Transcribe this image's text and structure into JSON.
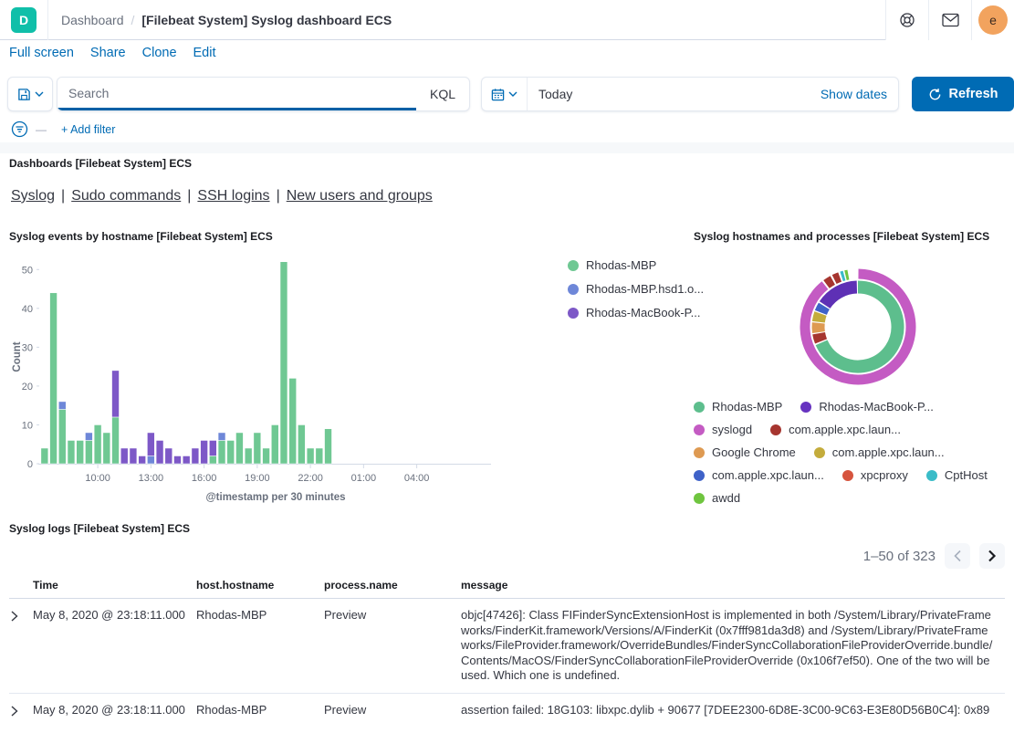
{
  "header": {
    "logo_letter": "D",
    "breadcrumb_root": "Dashboard",
    "breadcrumb_sep": "/",
    "title": "[Filebeat System] Syslog dashboard ECS",
    "avatar_letter": "e"
  },
  "menu": {
    "items": [
      "Full screen",
      "Share",
      "Clone",
      "Edit"
    ]
  },
  "query_bar": {
    "search_placeholder": "Search",
    "kql_label": "KQL",
    "date_value": "Today",
    "show_dates_label": "Show dates",
    "refresh_label": "Refresh"
  },
  "filter_bar": {
    "add_filter_label": "+ Add filter",
    "dash": "—"
  },
  "nav_panel": {
    "title": "Dashboards [Filebeat System] ECS",
    "links": [
      "Syslog",
      "Sudo commands",
      "SSH logins",
      "New users and groups"
    ],
    "separator": "|"
  },
  "chart_data": [
    {
      "id": "syslog-events-by-hostname",
      "type": "bar",
      "stacked": true,
      "title": "Syslog events by hostname [Filebeat System] ECS",
      "xlabel": "@timestamp per 30 minutes",
      "ylabel": "Count",
      "ylim": [
        0,
        55
      ],
      "yticks": [
        0,
        10,
        20,
        30,
        40,
        50
      ],
      "x_slot_count": 48,
      "x_start_time": "07:00",
      "xticks": [
        {
          "slot": 6,
          "label": "10:00"
        },
        {
          "slot": 12,
          "label": "13:00"
        },
        {
          "slot": 18,
          "label": "16:00"
        },
        {
          "slot": 24,
          "label": "19:00"
        },
        {
          "slot": 30,
          "label": "22:00"
        },
        {
          "slot": 36,
          "label": "01:00"
        },
        {
          "slot": 42,
          "label": "04:00"
        }
      ],
      "series": [
        {
          "name": "Rhodas-MBP",
          "color": "#6FC893",
          "values": [
            4,
            44,
            14,
            6,
            6,
            6,
            10,
            8,
            12,
            0,
            0,
            0,
            0,
            0,
            0,
            0,
            0,
            0,
            0,
            2,
            6,
            6,
            8,
            4,
            8,
            4,
            10,
            52,
            22,
            10,
            4,
            4,
            9
          ]
        },
        {
          "name": "Rhodas-MBP.hsd1.o...",
          "color": "#6E87D8",
          "values": [
            0,
            0,
            2,
            0,
            0,
            2,
            0,
            0,
            0,
            0,
            0,
            0,
            2,
            0,
            0,
            0,
            0,
            0,
            0,
            0,
            2,
            0,
            0,
            0,
            0,
            0,
            0,
            0,
            0,
            0,
            0,
            0,
            0
          ]
        },
        {
          "name": "Rhodas-MacBook-P...",
          "color": "#7D58C7",
          "values": [
            0,
            0,
            0,
            0,
            0,
            0,
            0,
            0,
            12,
            4,
            4,
            2,
            6,
            6,
            4,
            2,
            2,
            4,
            6,
            4,
            0,
            0,
            0,
            0,
            0,
            0,
            0,
            0,
            0,
            0,
            0,
            0,
            0
          ]
        }
      ],
      "legend_position": "right"
    },
    {
      "id": "syslog-hostnames-processes",
      "type": "pie",
      "subtype": "donut-two-ring",
      "title": "Syslog hostnames and processes [Filebeat System] ECS",
      "rings": {
        "inner": [
          {
            "name": "Rhodas-MBP",
            "color": "#5DBE8D",
            "start": 0,
            "end": 246.5
          },
          {
            "name": "com.apple.xpc.laun...",
            "color": "#A6352F",
            "start": 248.5,
            "end": 260.5
          },
          {
            "name": "Google Chrome",
            "color": "#DE9A52",
            "start": 262,
            "end": 275.5
          },
          {
            "name": "com.apple.xpc.laun...",
            "color": "#C4AC3C",
            "start": 277,
            "end": 289.5
          },
          {
            "name": "com.apple.xpc.laun...",
            "color": "#3F62C8",
            "start": 291,
            "end": 301.5
          },
          {
            "name": "Rhodas-MacBook-P...",
            "color": "#5E30B5",
            "start": 303.5,
            "end": 358.5
          }
        ],
        "outer": [
          {
            "name": "syslogd",
            "color": "#C45BC3",
            "start": 0.5,
            "end": 321.5
          },
          {
            "name": "com.apple.xpc.laun...",
            "color": "#A6352F",
            "start": 323.5,
            "end": 331.5
          },
          {
            "name": "com.apple.xpc.laun...",
            "color": "#A6352F",
            "start": 333.5,
            "end": 340
          },
          {
            "name": "CptHost",
            "color": "#3ABCC8",
            "start": 342,
            "end": 345
          },
          {
            "name": "awdd",
            "color": "#6FC53F",
            "start": 346.5,
            "end": 349.5
          }
        ]
      },
      "legend": {
        "items": [
          {
            "label": "Rhodas-MBP",
            "color": "#5DBE8D"
          },
          {
            "label": "Rhodas-MacBook-P...",
            "color": "#6733C0"
          },
          {
            "label": "syslogd",
            "color": "#C45BC3"
          },
          {
            "label": "com.apple.xpc.laun...",
            "color": "#A6352F"
          },
          {
            "label": "Google Chrome",
            "color": "#DE9A52"
          },
          {
            "label": "com.apple.xpc.laun...",
            "color": "#C4AC3C"
          },
          {
            "label": "com.apple.xpc.laun...",
            "color": "#3F62C8"
          },
          {
            "label": "xpcproxy",
            "color": "#D6543E"
          },
          {
            "label": "CptHost",
            "color": "#3ABCC8"
          },
          {
            "label": "awdd",
            "color": "#6FC53F"
          }
        ],
        "rows": [
          [
            0,
            1
          ],
          [
            2,
            3
          ],
          [
            4,
            5
          ],
          [
            6,
            7,
            8
          ],
          [
            9
          ]
        ]
      }
    }
  ],
  "logs": {
    "title": "Syslog logs [Filebeat System] ECS",
    "pagination": {
      "label": "1–50 of 323"
    },
    "columns": [
      "Time",
      "host.hostname",
      "process.name",
      "message"
    ],
    "rows": [
      {
        "time": "May 8, 2020 @ 23:18:11.000",
        "host": "Rhodas-MBP",
        "process": "Preview",
        "message": "objc[47426]: Class FIFinderSyncExtensionHost is implemented in both /System/Library/PrivateFrameworks/FinderKit.framework/Versions/A/FinderKit (0x7fff981da3d8) and /System/Library/PrivateFrameworks/FileProvider.framework/OverrideBundles/FinderSyncCollaborationFileProviderOverride.bundle/Contents/MacOS/FinderSyncCollaborationFileProviderOverride (0x106f7ef50). One of the two will be used. Which one is undefined."
      },
      {
        "time": "May 8, 2020 @ 23:18:11.000",
        "host": "Rhodas-MBP",
        "process": "Preview",
        "message": "assertion failed: 18G103: libxpc.dylib + 90677 [7DEE2300-6D8E-3C00-9C63-E3E80D56B0C4]: 0x89"
      }
    ]
  },
  "colors": {
    "primary": "#006BB4",
    "logo_teal": "#10BFA9",
    "avatar_bg": "#F2A35E",
    "border": "#D3DAE6",
    "text": "#343741",
    "subdued": "#69707D"
  }
}
